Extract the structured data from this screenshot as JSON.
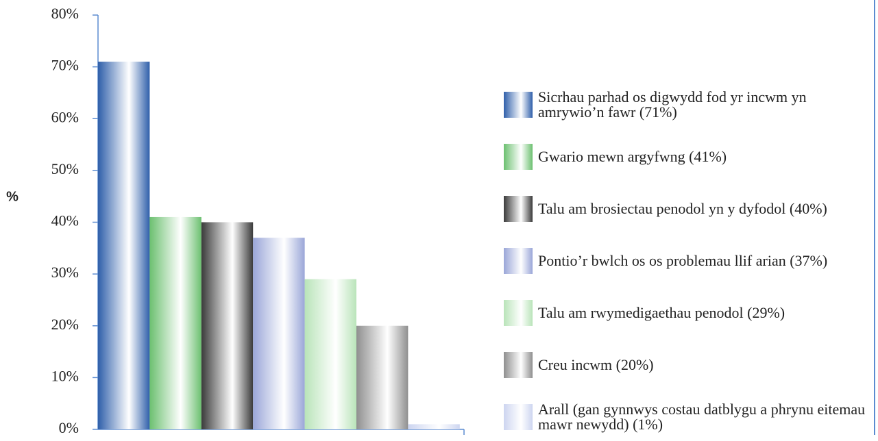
{
  "chart_data": {
    "type": "bar",
    "ylabel": "%",
    "ylim": [
      0,
      80
    ],
    "yticks": [
      {
        "value": 0,
        "label": "0%"
      },
      {
        "value": 10,
        "label": "10%"
      },
      {
        "value": 20,
        "label": "20%"
      },
      {
        "value": 30,
        "label": "30%"
      },
      {
        "value": 40,
        "label": "40%"
      },
      {
        "value": 50,
        "label": "50%"
      },
      {
        "value": 60,
        "label": "60%"
      },
      {
        "value": 70,
        "label": "70%"
      },
      {
        "value": 80,
        "label": "80%"
      }
    ],
    "legend": "right",
    "series": [
      {
        "name": "Sicrhau parhad os digwydd fod yr incwm yn amrywio’n fawr (71%)",
        "color": "#2f5faa",
        "values": [
          71
        ]
      },
      {
        "name": "Gwario mewn argyfwng (41%)",
        "color": "#6cc070",
        "values": [
          41
        ]
      },
      {
        "name": "Talu am brosiectau penodol yn y dyfodol (40%)",
        "color": "#3a3a3a",
        "values": [
          40
        ]
      },
      {
        "name": "Pontio’r bwlch os os problemau llif arian (37%)",
        "color": "#9aa6d8",
        "values": [
          37
        ]
      },
      {
        "name": "Talu am rwymedigaethau penodol (29%)",
        "color": "#b9e4b9",
        "values": [
          29
        ]
      },
      {
        "name": "Creu incwm (20%)",
        "color": "#8f8f8f",
        "values": [
          20
        ]
      },
      {
        "name": "Arall (gan gynnwys costau datblygu a phrynu eitemau mawr newydd) (1%)",
        "color": "#cdd5f0",
        "values": [
          1
        ]
      }
    ]
  }
}
